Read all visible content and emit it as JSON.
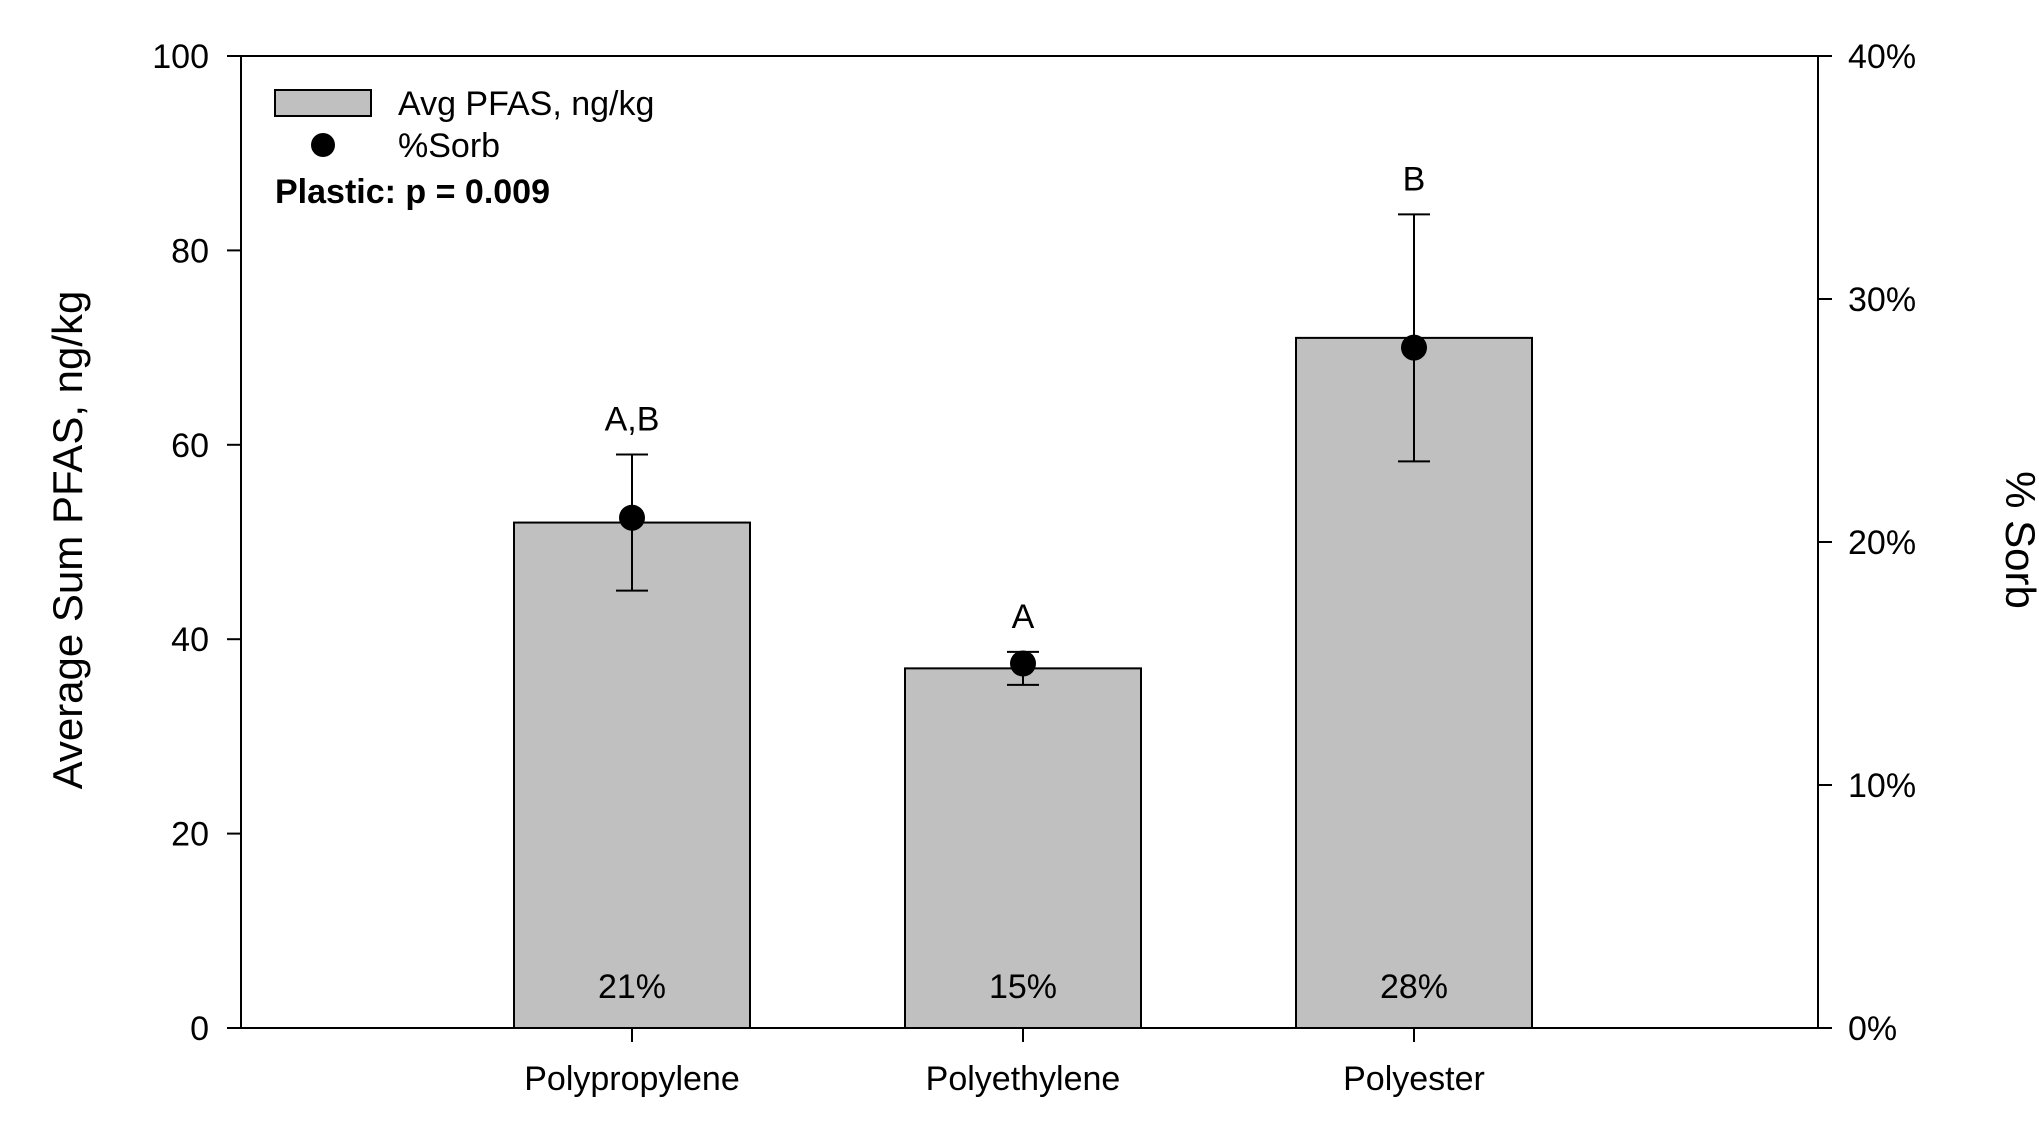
{
  "chart_data": {
    "type": "bar",
    "categories": [
      "Polypropylene",
      "Polyethylene",
      "Polyester"
    ],
    "series": [
      {
        "name": "Avg PFAS, ng/kg",
        "values": [
          52,
          37,
          71
        ],
        "error": [
          7,
          1.7,
          12.7
        ],
        "bar_labels": [
          "21%",
          "15%",
          "28%"
        ],
        "significance": [
          "A,B",
          "A",
          "B"
        ]
      },
      {
        "name": "%Sorb",
        "values": [
          21,
          15,
          28
        ],
        "axis": "right"
      }
    ],
    "ylabel": "Average Sum PFAS, ng/kg",
    "y2label": "% Sorb",
    "ylim": [
      0,
      100
    ],
    "y2lim": [
      0,
      40
    ],
    "yticks": [
      "0",
      "20",
      "40",
      "60",
      "80",
      "100"
    ],
    "y2ticks": [
      "0%",
      "10%",
      "20%",
      "30%",
      "40%"
    ],
    "annotation": "Plastic: p = 0.009",
    "legend_position": "top-left",
    "colors": {
      "bar_fill": "#c0c0c0",
      "bar_stroke": "#000000",
      "point": "#000000"
    },
    "grid": false
  }
}
